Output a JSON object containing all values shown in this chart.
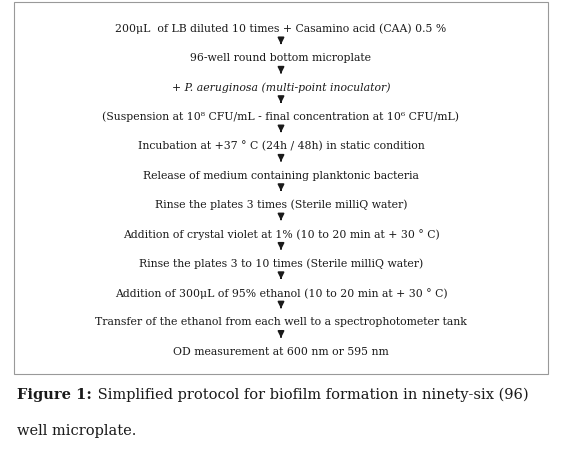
{
  "steps": [
    {
      "text": "200μL  of LB diluted 10 times + Casamino acid (CAA) 0.5 %",
      "style": "normal"
    },
    {
      "text": "96-well round bottom microplate",
      "style": "normal"
    },
    {
      "text": "+ P. aeruginosa (multi-point inoculator)",
      "style": "italic"
    },
    {
      "text": "(Suspension at 10⁸ CFU/mL - final concentration at 10⁶ CFU/mL)",
      "style": "normal"
    },
    {
      "text": "Incubation at +37 ° C (24h / 48h) in static condition",
      "style": "normal"
    },
    {
      "text": "Release of medium containing planktonic bacteria",
      "style": "normal"
    },
    {
      "text": "Rinse the plates 3 times (Sterile milliQ water)",
      "style": "normal"
    },
    {
      "text": "Addition of crystal violet at 1% (10 to 20 min at + 30 ° C)",
      "style": "normal"
    },
    {
      "text": "Rinse the plates 3 to 10 times (Sterile milliQ water)",
      "style": "normal"
    },
    {
      "text": "Addition of 300μL of 95% ethanol (10 to 20 min at + 30 ° C)",
      "style": "normal"
    },
    {
      "text": "Transfer of the ethanol from each well to a spectrophotometer tank",
      "style": "normal"
    },
    {
      "text": "OD measurement at 600 nm or 595 nm",
      "style": "normal"
    }
  ],
  "caption_bold": "Figure 1:",
  "caption_normal": " Simplified protocol for biofilm formation in ninety-six (96) well microplate.",
  "text_color": "#1a1a1a",
  "arrow_color": "#1a1a1a",
  "bg_color": "#ffffff",
  "border_color": "#999999",
  "font_size": 7.8,
  "caption_fontsize": 10.5,
  "fig_width": 5.62,
  "fig_height": 4.76
}
